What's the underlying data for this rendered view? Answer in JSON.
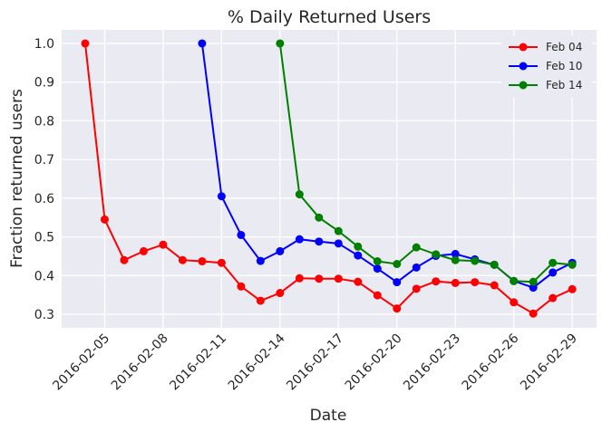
{
  "chart_data": {
    "type": "line",
    "title": "% Daily Returned Users",
    "xlabel": "Date",
    "ylabel": "Fraction returned users",
    "x_tick_labels": [
      "2016-02-05",
      "2016-02-08",
      "2016-02-11",
      "2016-02-14",
      "2016-02-17",
      "2016-02-20",
      "2016-02-23",
      "2016-02-26",
      "2016-02-29"
    ],
    "x_ticks": [
      "2016-02-05",
      "2016-02-08",
      "2016-02-11",
      "2016-02-14",
      "2016-02-17",
      "2016-02-20",
      "2016-02-23",
      "2016-02-26",
      "2016-02-29"
    ],
    "y_ticks": [
      0.3,
      0.4,
      0.5,
      0.6,
      0.7,
      0.8,
      0.9,
      1.0
    ],
    "y_tick_labels": [
      "0.3",
      "0.4",
      "0.5",
      "0.6",
      "0.7",
      "0.8",
      "0.9",
      "1.0"
    ],
    "xlim": [
      "2016-02-02T19:00",
      "2016-03-01T06:00"
    ],
    "ylim": [
      0.265,
      1.035
    ],
    "grid": true,
    "legend_position": "top-right",
    "series": [
      {
        "name": "Feb 04",
        "color": "#ff0000",
        "x": [
          "2016-02-04",
          "2016-02-05",
          "2016-02-06",
          "2016-02-07",
          "2016-02-08",
          "2016-02-09",
          "2016-02-10",
          "2016-02-11",
          "2016-02-12",
          "2016-02-13",
          "2016-02-14",
          "2016-02-15",
          "2016-02-16",
          "2016-02-17",
          "2016-02-18",
          "2016-02-19",
          "2016-02-20",
          "2016-02-21",
          "2016-02-22",
          "2016-02-23",
          "2016-02-24",
          "2016-02-25",
          "2016-02-26",
          "2016-02-27",
          "2016-02-28",
          "2016-02-29"
        ],
        "y": [
          1.0,
          0.545,
          0.44,
          0.463,
          0.48,
          0.44,
          0.437,
          0.433,
          0.372,
          0.335,
          0.355,
          0.393,
          0.392,
          0.392,
          0.384,
          0.349,
          0.315,
          0.366,
          0.385,
          0.381,
          0.383,
          0.375,
          0.331,
          0.302,
          0.342,
          0.365
        ]
      },
      {
        "name": "Feb 10",
        "color": "#0000ff",
        "x": [
          "2016-02-10",
          "2016-02-11",
          "2016-02-12",
          "2016-02-13",
          "2016-02-14",
          "2016-02-15",
          "2016-02-16",
          "2016-02-17",
          "2016-02-18",
          "2016-02-19",
          "2016-02-20",
          "2016-02-21",
          "2016-02-22",
          "2016-02-23",
          "2016-02-24",
          "2016-02-25",
          "2016-02-26",
          "2016-02-27",
          "2016-02-28",
          "2016-02-29"
        ],
        "y": [
          1.0,
          0.605,
          0.505,
          0.438,
          0.463,
          0.494,
          0.488,
          0.483,
          0.452,
          0.418,
          0.383,
          0.421,
          0.451,
          0.456,
          0.442,
          0.428,
          0.386,
          0.369,
          0.408,
          0.433
        ]
      },
      {
        "name": "Feb 14",
        "color": "#008000",
        "x": [
          "2016-02-14",
          "2016-02-15",
          "2016-02-16",
          "2016-02-17",
          "2016-02-18",
          "2016-02-19",
          "2016-02-20",
          "2016-02-21",
          "2016-02-22",
          "2016-02-23",
          "2016-02-24",
          "2016-02-25",
          "2016-02-26",
          "2016-02-27",
          "2016-02-28",
          "2016-02-29"
        ],
        "y": [
          1.0,
          0.61,
          0.55,
          0.515,
          0.475,
          0.437,
          0.43,
          0.473,
          0.455,
          0.44,
          0.438,
          0.428,
          0.386,
          0.384,
          0.433,
          0.428
        ]
      }
    ]
  }
}
